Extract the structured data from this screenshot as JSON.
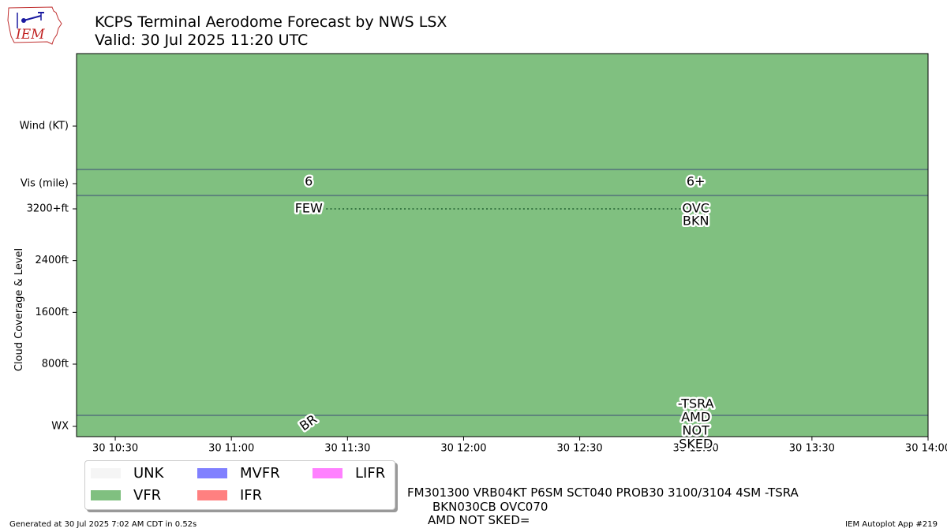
{
  "header": {
    "logo_text": "IEM",
    "title_line1": "KCPS Terminal Aerodome Forecast by NWS LSX",
    "title_line2": "Valid: 30 Jul 2025 11:20 UTC"
  },
  "chart_data": {
    "type": "timeline",
    "ylabel": "Cloud Coverage & Level",
    "x_ticks": [
      "30 10:30",
      "30 11:00",
      "30 11:30",
      "30 12:00",
      "30 12:30",
      "30 13:00",
      "30 13:30",
      "30 14:00"
    ],
    "x_range": [
      "30 10:20",
      "30 14:00"
    ],
    "row_labels": {
      "wind": "Wind (KT)",
      "vis": "Vis (mile)",
      "wx": "WX"
    },
    "cloud_ticks": [
      "3200+ft",
      "2400ft",
      "1600ft",
      "800ft"
    ],
    "cloud_tick_values": [
      3200,
      2400,
      1600,
      800
    ],
    "background_category": "VFR",
    "periods": [
      {
        "time": "30 11:20",
        "vis": "6",
        "clouds": [
          "FEW"
        ],
        "cloud_level_ft": 3200,
        "wx": [
          "BR"
        ]
      },
      {
        "time": "30 13:00",
        "vis": "6+",
        "clouds": [
          "OVC",
          "BKN"
        ],
        "cloud_level_ft": 3200,
        "wx": [
          "-TSRA",
          "AMD",
          "NOT",
          "SKED"
        ]
      }
    ],
    "legend": [
      {
        "label": "UNK",
        "color": "#f5f5f5"
      },
      {
        "label": "VFR",
        "color": "#80c080"
      },
      {
        "label": "MVFR",
        "color": "#8080ff"
      },
      {
        "label": "IFR",
        "color": "#ff8080"
      },
      {
        "label": "LIFR",
        "color": "#ff80ff"
      }
    ]
  },
  "taf_text": {
    "line1": "FM301300 VRB04KT P6SM SCT040 PROB30 3100/3104 4SM -TSRA",
    "line2": "BKN030CB OVC070",
    "line3": "AMD NOT SKED="
  },
  "footer": {
    "left": "Generated at 30 Jul 2025 7:02 AM CDT in 0.52s",
    "right": "IEM Autoplot App #219"
  },
  "colors": {
    "vfr": "#80c080",
    "row_line": "#3b4a78",
    "cloud_dots": "#1f5f2f"
  }
}
